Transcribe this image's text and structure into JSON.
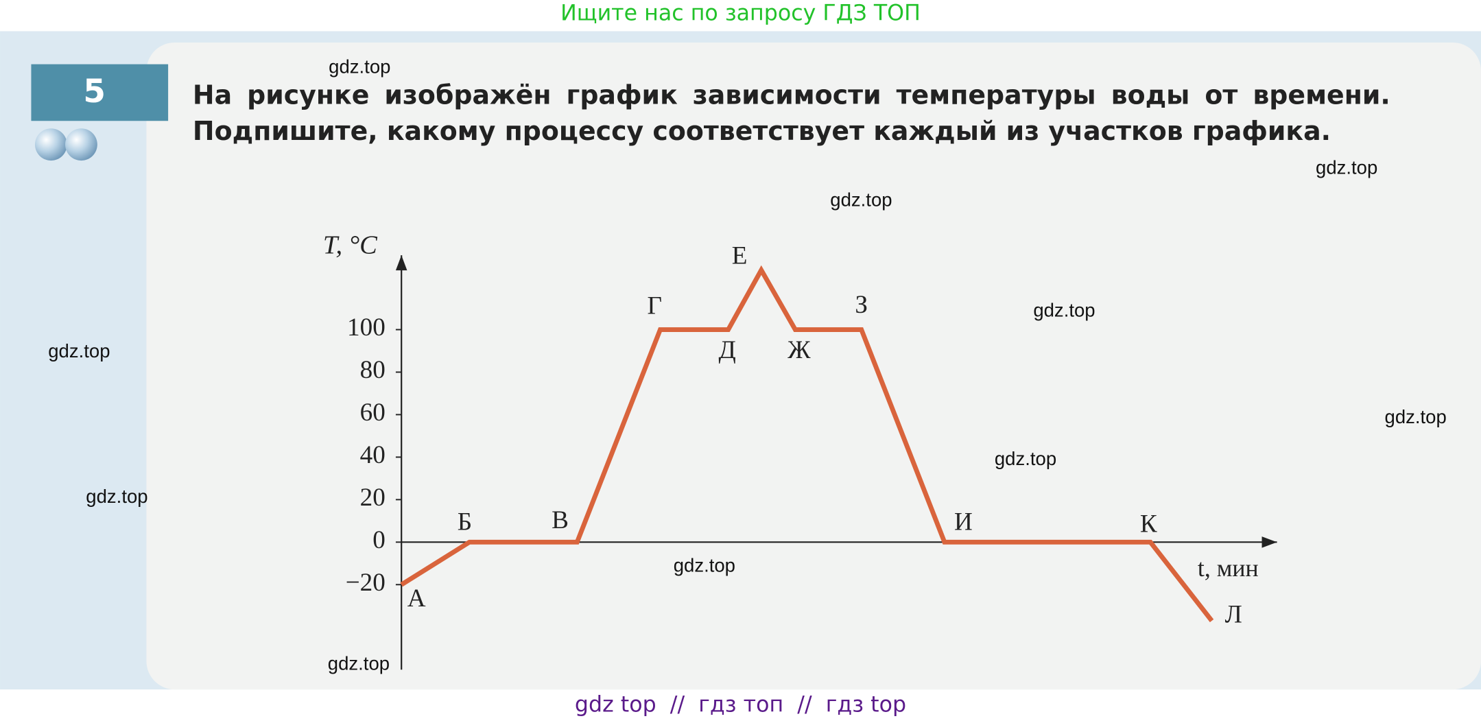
{
  "header": "Ищите нас по запросу ГДЗ ТОП",
  "task": {
    "number": "5",
    "text": "На рисунке изображён график зависимости температуры воды от времени. Подпишите, какому процессу соответствует каждый из участков графика."
  },
  "chart_data": {
    "type": "line",
    "y_label": "T, °C",
    "x_label": "t, мин",
    "categories": [
      "А",
      "Б",
      "В",
      "Г",
      "Д",
      "Е",
      "Ж",
      "З",
      "И",
      "К",
      "Л"
    ],
    "values": [
      -20,
      0,
      0,
      100,
      100,
      128,
      100,
      100,
      0,
      0,
      -37
    ],
    "color": "#d9643c",
    "ylim": [
      -60,
      135
    ],
    "yticks": [
      {
        "value": -20,
        "label": "−20"
      },
      0,
      20,
      40,
      60,
      80,
      100
    ]
  },
  "watermarks": [
    "gdz.top",
    "gdz.top",
    "gdz.top",
    "gdz.top",
    "gdz.top",
    "gdz.top",
    "gdz.top",
    "gdz.top",
    "gdz.top",
    "gdz.top"
  ],
  "footer": "gdz top  //  гдз топ  //  гдз top"
}
